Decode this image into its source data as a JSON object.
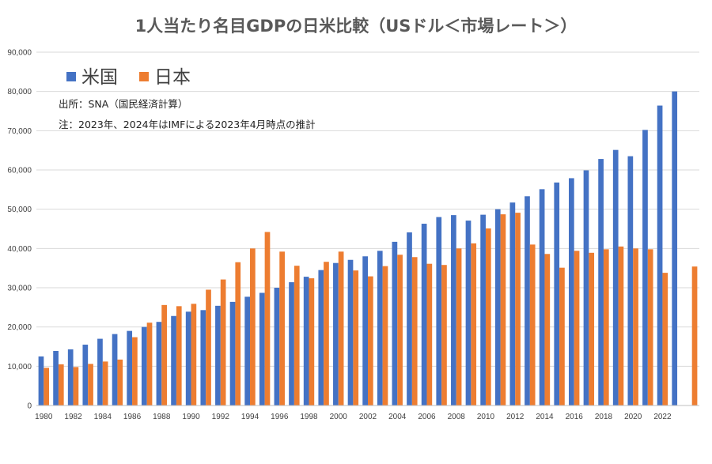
{
  "chart_data": {
    "type": "bar",
    "title": "1人当たり名目GDPの日米比較（USドル＜市場レート＞）",
    "xlabel": "",
    "ylabel": "",
    "ylim": [
      0,
      90000
    ],
    "yticks": [
      "0",
      "10,000",
      "20,000",
      "30,000",
      "40,000",
      "50,000",
      "60,000",
      "70,000",
      "80,000",
      "90,000"
    ],
    "ytick_values": [
      0,
      10000,
      20000,
      30000,
      40000,
      50000,
      60000,
      70000,
      80000,
      90000
    ],
    "grid": true,
    "legend_position": "top-left",
    "x_tick_labels": [
      "1980",
      "1982",
      "1984",
      "1986",
      "1988",
      "1990",
      "1992",
      "1994",
      "1996",
      "1998",
      "2000",
      "2002",
      "2004",
      "2006",
      "2008",
      "2010",
      "2012",
      "2014",
      "2016",
      "2018",
      "2020",
      "2022"
    ],
    "categories": [
      1980,
      1981,
      1982,
      1983,
      1984,
      1985,
      1986,
      1987,
      1988,
      1989,
      1990,
      1991,
      1992,
      1993,
      1994,
      1995,
      1996,
      1997,
      1998,
      1999,
      2000,
      2001,
      2002,
      2003,
      2004,
      2005,
      2006,
      2007,
      2008,
      2009,
      2010,
      2011,
      2012,
      2013,
      2014,
      2015,
      2016,
      2017,
      2018,
      2019,
      2020,
      2021,
      2022,
      2023,
      2024
    ],
    "series": [
      {
        "name": "米国",
        "color": "#4472c4",
        "values": [
          12500,
          13900,
          14300,
          15500,
          17000,
          18200,
          19000,
          20000,
          21300,
          22800,
          23900,
          24300,
          25400,
          26400,
          27700,
          28700,
          30000,
          31400,
          32800,
          34500,
          36300,
          37100,
          38000,
          39400,
          41700,
          44100,
          46300,
          48000,
          48500,
          47100,
          48600,
          50000,
          51700,
          53300,
          55100,
          56800,
          57900,
          59900,
          62800,
          65100,
          63500,
          70200,
          76400,
          80000,
          null
        ]
      },
      {
        "name": "日本",
        "color": "#ed7d31",
        "values": [
          9600,
          10500,
          9800,
          10600,
          11200,
          11700,
          17400,
          21100,
          25600,
          25300,
          25900,
          29500,
          32100,
          36500,
          40000,
          44200,
          39200,
          35600,
          32400,
          36600,
          39200,
          34400,
          32900,
          35500,
          38400,
          37800,
          36100,
          35800,
          40000,
          41300,
          45100,
          48700,
          49100,
          41000,
          38600,
          35100,
          39400,
          38900,
          39800,
          40500,
          40000,
          39800,
          33800,
          null,
          35400
        ]
      }
    ],
    "notes": [
      "出所：SNA（国民経済計算）",
      "注：2023年、2024年はIMFによる2023年4月時点の推計"
    ]
  }
}
